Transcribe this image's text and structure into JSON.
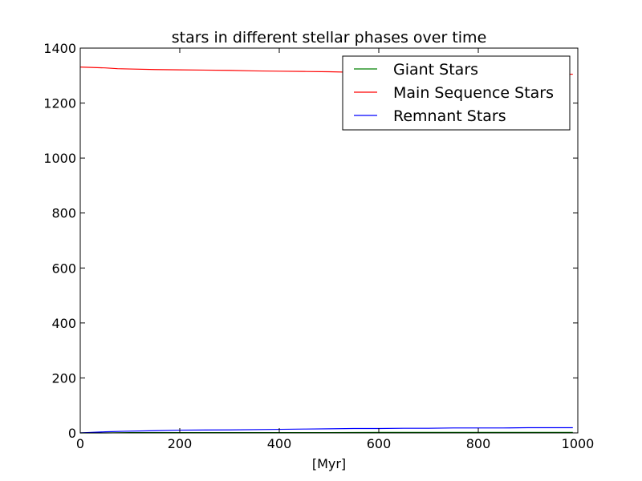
{
  "chart_data": {
    "type": "line",
    "title": "stars in different stellar phases over time",
    "xlabel": "[Myr]",
    "ylabel": "",
    "xlim": [
      0,
      1000
    ],
    "ylim": [
      0,
      1400
    ],
    "xticks": [
      0,
      200,
      400,
      600,
      800,
      1000
    ],
    "yticks": [
      0,
      200,
      400,
      600,
      800,
      1000,
      1200,
      1400
    ],
    "xtick_labels": [
      "0",
      "200",
      "400",
      "600",
      "800",
      "1000"
    ],
    "ytick_labels": [
      "0",
      "200",
      "400",
      "600",
      "800",
      "1000",
      "1200",
      "1400"
    ],
    "grid": false,
    "legend_position": "upper right",
    "series": [
      {
        "name": "Giant Stars",
        "color": "#008000",
        "x": [
          0,
          50,
          100,
          200,
          300,
          400,
          500,
          600,
          700,
          800,
          900,
          990
        ],
        "y": [
          0,
          0,
          1,
          1,
          1,
          1,
          1,
          2,
          2,
          2,
          2,
          2
        ]
      },
      {
        "name": "Main Sequence Stars",
        "color": "#ff0000",
        "x": [
          0,
          50,
          75,
          100,
          150,
          200,
          300,
          350,
          400,
          450,
          500,
          550,
          600,
          650,
          700,
          750,
          800,
          850,
          900,
          950,
          990
        ],
        "y": [
          1331,
          1328,
          1325,
          1324,
          1322,
          1321,
          1319,
          1317,
          1316,
          1315,
          1314,
          1312,
          1311,
          1310,
          1309,
          1308,
          1307,
          1306,
          1306,
          1305,
          1305
        ]
      },
      {
        "name": "Remnant Stars",
        "color": "#0000ff",
        "x": [
          0,
          50,
          90,
          150,
          200,
          300,
          400,
          450,
          500,
          550,
          600,
          650,
          700,
          750,
          800,
          850,
          900,
          950,
          990
        ],
        "y": [
          0,
          4,
          6,
          8,
          10,
          11,
          13,
          14,
          15,
          16,
          16,
          17,
          17,
          18,
          18,
          18,
          19,
          19,
          19
        ]
      }
    ]
  }
}
